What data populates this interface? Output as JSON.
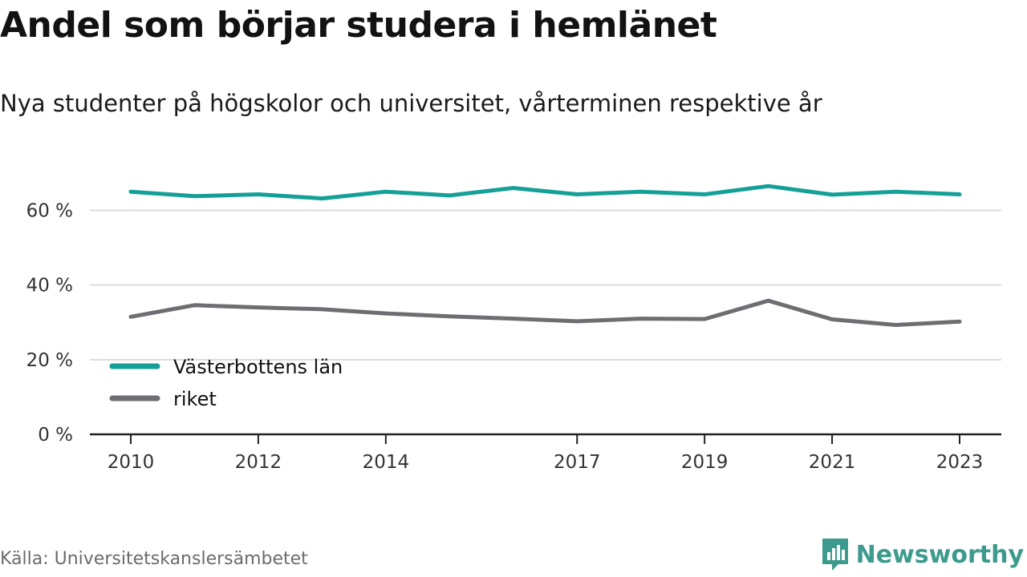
{
  "title": "Andel som börjar studera i hemlänet",
  "subtitle": "Nya studenter på högskolor och universitet, vårterminen respektive år",
  "source": "Källa: Universitetskanslersämbetet",
  "brand": {
    "name": "Newsworthy",
    "icon": "newsworthy-logo-icon",
    "color": "#3d9b8d"
  },
  "chart_data": {
    "type": "line",
    "x": [
      2010,
      2011,
      2012,
      2013,
      2014,
      2015,
      2016,
      2017,
      2018,
      2019,
      2020,
      2021,
      2022,
      2023
    ],
    "x_ticks": [
      2010,
      2012,
      2014,
      2017,
      2019,
      2021,
      2023
    ],
    "x_tick_labels": [
      "2010",
      "2012",
      "2014",
      "2017",
      "2019",
      "2021",
      "2023"
    ],
    "ylim": [
      0,
      70
    ],
    "y_ticks": [
      0,
      20,
      40,
      60
    ],
    "y_tick_labels": [
      "0 %",
      "20 %",
      "40 %",
      "60 %"
    ],
    "grid": true,
    "legend_position": "bottom-left",
    "series": [
      {
        "name": "Västerbottens län",
        "color": "#14a097",
        "values": [
          65.0,
          63.8,
          64.3,
          63.2,
          65.0,
          64.0,
          66.0,
          64.3,
          65.0,
          64.3,
          66.5,
          64.2,
          65.0,
          64.3
        ]
      },
      {
        "name": "riket",
        "color": "#6d6d72",
        "values": [
          31.5,
          34.6,
          34.0,
          33.5,
          32.4,
          31.6,
          31.0,
          30.3,
          31.0,
          30.9,
          35.8,
          30.8,
          29.3,
          30.2
        ]
      }
    ],
    "title": "Andel som börjar studera i hemlänet",
    "subtitle": "Nya studenter på högskolor och universitet, vårterminen respektive år"
  }
}
